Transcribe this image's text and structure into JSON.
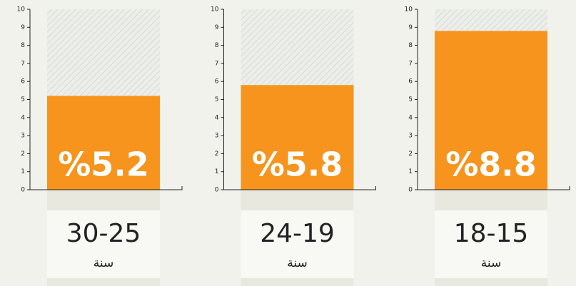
{
  "chart_data": [
    {
      "type": "bar",
      "categories": [
        "30-25"
      ],
      "sublabel": "سنة",
      "values": [
        5.2
      ],
      "value_labels": [
        "%5.2"
      ],
      "color": "#f7941d",
      "ylim": [
        0,
        10
      ],
      "yticks": [
        0,
        1,
        2,
        3,
        4,
        5,
        6,
        7,
        8,
        9,
        10
      ]
    },
    {
      "type": "bar",
      "categories": [
        "24-19"
      ],
      "sublabel": "سنة",
      "values": [
        5.8
      ],
      "value_labels": [
        "%5.8"
      ],
      "color": "#f7941d",
      "ylim": [
        0,
        10
      ],
      "yticks": [
        0,
        1,
        2,
        3,
        4,
        5,
        6,
        7,
        8,
        9,
        10
      ]
    },
    {
      "type": "bar",
      "categories": [
        "18-15"
      ],
      "sublabel": "سنة",
      "values": [
        8.8
      ],
      "value_labels": [
        "%8.8"
      ],
      "color": "#f7941d",
      "ylim": [
        0,
        10
      ],
      "yticks": [
        0,
        1,
        2,
        3,
        4,
        5,
        6,
        7,
        8,
        9,
        10
      ]
    }
  ]
}
